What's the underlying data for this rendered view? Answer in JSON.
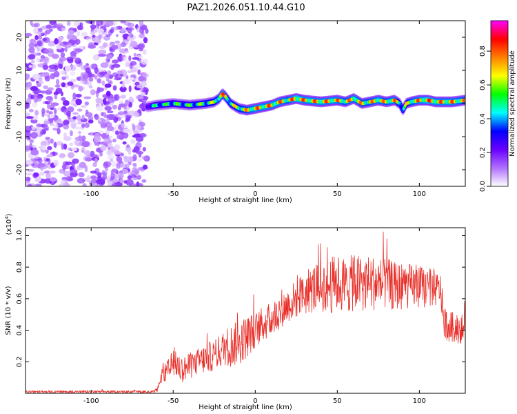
{
  "title": "PAZ1.2026.051.10.44.G10",
  "chart_data": [
    {
      "type": "heatmap",
      "xlabel": "Height of straight line (km)",
      "ylabel": "Frequency (Hz)",
      "xlim": [
        -140,
        128
      ],
      "ylim": [
        -25,
        25
      ],
      "xticks": [
        -100,
        -50,
        0,
        50,
        100
      ],
      "yticks": [
        -20,
        -10,
        0,
        10,
        20
      ],
      "colorbar": {
        "label": "Normalized spectral amplitude",
        "range": [
          0.0,
          0.98
        ],
        "ticks": [
          0.0,
          0.2,
          0.4,
          0.6,
          0.8
        ],
        "colormap": [
          "#ffffff",
          "#b070ff",
          "#6a00ff",
          "#0000ff",
          "#00ffff",
          "#00ff00",
          "#ffff00",
          "#ff8000",
          "#ff0000",
          "#ff00ff"
        ]
      },
      "noise_region": {
        "x_range": [
          -140,
          -66
        ],
        "amplitude_range": [
          0.02,
          0.2
        ]
      },
      "ridge": {
        "x": [
          -66,
          -60,
          -50,
          -40,
          -30,
          -25,
          -22,
          -20,
          -18,
          -15,
          -10,
          -5,
          0,
          5,
          10,
          15,
          20,
          25,
          30,
          40,
          50,
          55,
          60,
          65,
          70,
          75,
          80,
          85,
          88,
          90,
          92,
          95,
          100,
          105,
          110,
          115,
          120,
          128
        ],
        "frequency": [
          -1,
          -0.5,
          0,
          -0.5,
          0,
          0.5,
          1.5,
          3,
          2,
          0,
          -1.5,
          -2,
          -1.5,
          -1,
          -0.5,
          0.5,
          1,
          1.5,
          1,
          0.5,
          1,
          0.5,
          1.5,
          0,
          0.5,
          1,
          0.5,
          1,
          0,
          -2,
          0,
          0.5,
          1,
          1,
          0.5,
          0.5,
          0.5,
          1
        ],
        "amplitude": [
          0.4,
          0.55,
          0.6,
          0.6,
          0.65,
          0.7,
          0.8,
          0.88,
          0.8,
          0.7,
          0.75,
          0.8,
          0.85,
          0.85,
          0.85,
          0.85,
          0.8,
          0.9,
          0.85,
          0.85,
          0.85,
          0.8,
          0.85,
          0.8,
          0.8,
          0.85,
          0.8,
          0.85,
          0.7,
          0.6,
          0.7,
          0.8,
          0.85,
          0.9,
          0.85,
          0.85,
          0.85,
          0.8
        ]
      }
    },
    {
      "type": "line",
      "xlabel": "Height of straight line (km)",
      "ylabel": "SNR (10 * v/v)",
      "y_multiplier": "(x10^4)",
      "xlim": [
        -140,
        128
      ],
      "ylim": [
        0,
        1.05
      ],
      "xticks": [
        -100,
        -50,
        0,
        50,
        100
      ],
      "yticks": [
        0.2,
        0.4,
        0.6,
        0.8,
        1.0
      ],
      "color": "#e8302a",
      "series": [
        {
          "x": [
            -140,
            -120,
            -100,
            -80,
            -62,
            -60,
            -58,
            -57,
            -56,
            -55,
            -52,
            -50,
            -45,
            -40,
            -35,
            -30,
            -25,
            -20,
            -17,
            -15,
            -10,
            -5,
            0,
            5,
            10,
            15,
            20,
            25,
            30,
            35,
            40,
            45,
            50,
            55,
            60,
            65,
            70,
            75,
            80,
            85,
            90,
            95,
            100,
            105,
            110,
            113,
            115,
            118,
            120,
            125,
            128
          ],
          "mean": [
            0.01,
            0.01,
            0.01,
            0.01,
            0.01,
            0.02,
            0.05,
            0.12,
            0.15,
            0.12,
            0.15,
            0.2,
            0.15,
            0.17,
            0.2,
            0.22,
            0.24,
            0.28,
            0.3,
            0.3,
            0.32,
            0.36,
            0.4,
            0.44,
            0.47,
            0.52,
            0.56,
            0.6,
            0.63,
            0.66,
            0.68,
            0.68,
            0.7,
            0.68,
            0.7,
            0.7,
            0.7,
            0.7,
            0.69,
            0.68,
            0.68,
            0.68,
            0.67,
            0.67,
            0.66,
            0.66,
            0.45,
            0.42,
            0.42,
            0.41,
            0.4
          ],
          "spread": [
            0.01,
            0.01,
            0.01,
            0.01,
            0.01,
            0.02,
            0.04,
            0.06,
            0.08,
            0.1,
            0.12,
            0.12,
            0.12,
            0.12,
            0.12,
            0.14,
            0.14,
            0.16,
            0.18,
            0.2,
            0.2,
            0.2,
            0.16,
            0.16,
            0.16,
            0.16,
            0.16,
            0.18,
            0.2,
            0.22,
            0.24,
            0.26,
            0.26,
            0.26,
            0.26,
            0.26,
            0.26,
            0.24,
            0.24,
            0.22,
            0.22,
            0.2,
            0.2,
            0.18,
            0.16,
            0.14,
            0.14,
            0.14,
            0.14,
            0.14,
            0.14
          ]
        }
      ]
    }
  ]
}
